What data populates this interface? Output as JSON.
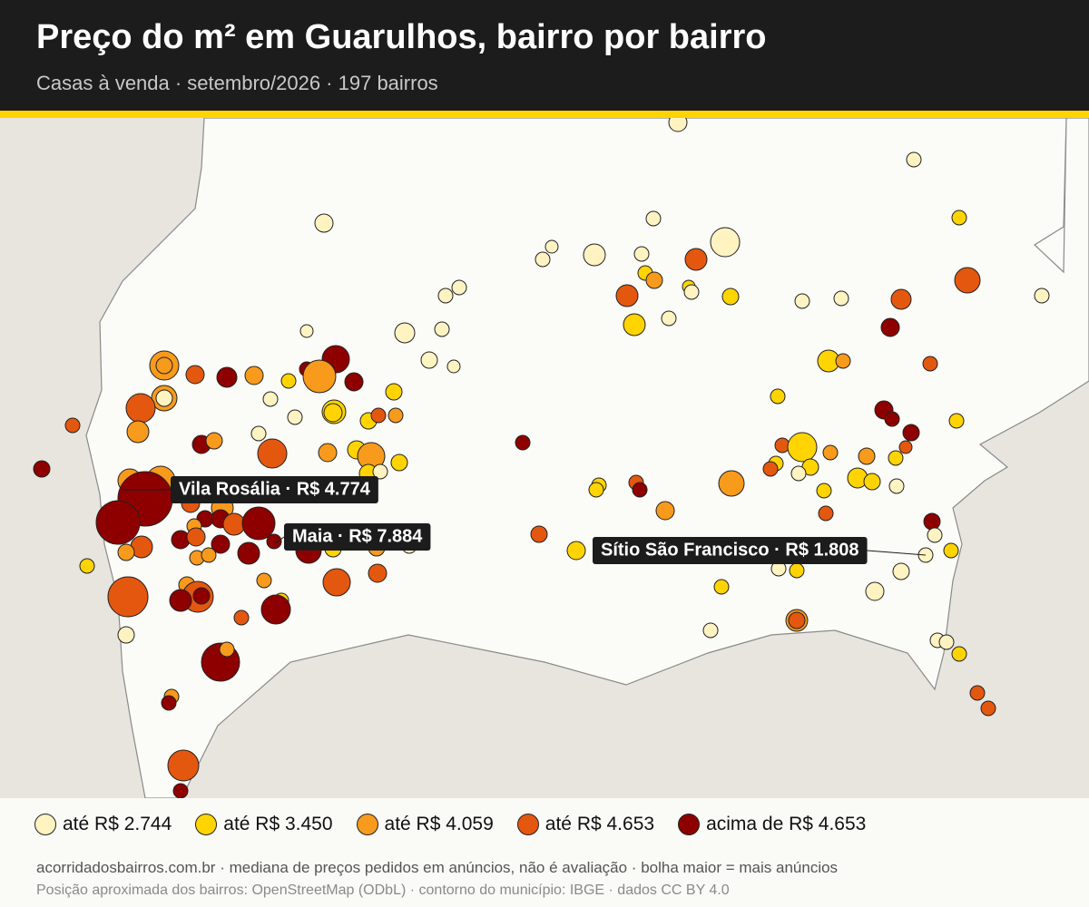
{
  "header": {
    "title": "Preço do m² em Guarulhos, bairro por bairro",
    "subtitle": "Casas à venda · setembro/2026 · 197 bairros"
  },
  "callouts": [
    {
      "label": "Vila Rosália · R$ 4.774"
    },
    {
      "label": "Maia · R$ 7.884"
    },
    {
      "label": "Sítio São Francisco · R$ 1.808"
    }
  ],
  "legend": [
    {
      "label": "até R$ 2.744",
      "color": "#fff3c2"
    },
    {
      "label": "até R$ 3.450",
      "color": "#ffd400"
    },
    {
      "label": "até R$ 4.059",
      "color": "#f89a1c"
    },
    {
      "label": "até R$ 4.653",
      "color": "#e4570f"
    },
    {
      "label": "acima de R$ 4.653",
      "color": "#8e0000"
    }
  ],
  "footer": {
    "source": "acorridadosbairros.com.br · mediana de preços pedidos em anúncios, não é avaliação · bolha maior = mais anúncios",
    "attribution": "Posição aproximada dos bairros: OpenStreetMap (ODbL) · contorno do município: IBGE · dados CC BY 4.0"
  }
}
